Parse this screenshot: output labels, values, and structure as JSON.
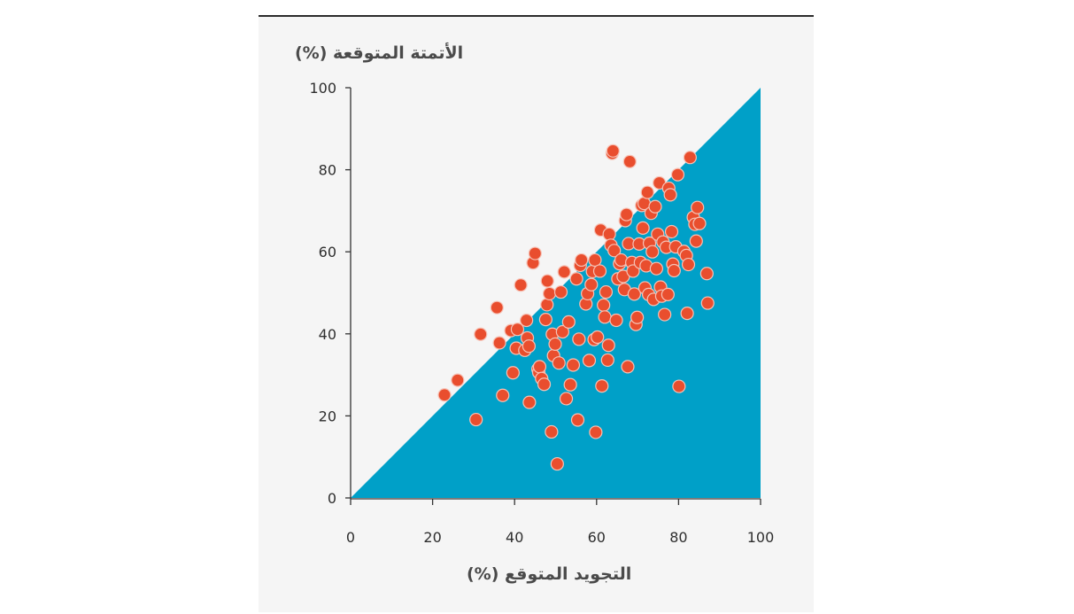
{
  "colors": {
    "region_fill": "#00a0c8",
    "point_fill": "#e94e2e",
    "point_stroke": "#f6c2b6",
    "axis": "#333333",
    "panel_bg": "#f5f5f5"
  },
  "chart_data": {
    "type": "scatter",
    "xlabel": "التجويد المتوقع (%)",
    "ylabel": "الأتمتة المتوقعة (%)",
    "xlim": [
      0,
      100
    ],
    "ylim": [
      0,
      100
    ],
    "xticks": [
      0,
      20,
      40,
      60,
      80,
      100
    ],
    "yticks": [
      0,
      20,
      40,
      60,
      80,
      100
    ],
    "grid": false,
    "region": {
      "description": "shaded area below the diagonal y = x",
      "vertices": [
        [
          0,
          0
        ],
        [
          100,
          100
        ],
        [
          100,
          0
        ]
      ]
    },
    "points": [
      [
        22.9,
        25.1
      ],
      [
        26.1,
        28.7
      ],
      [
        30.6,
        19.1
      ],
      [
        31.7,
        39.9
      ],
      [
        35.7,
        46.4
      ],
      [
        36.3,
        37.8
      ],
      [
        37.1,
        25.0
      ],
      [
        39.1,
        40.8
      ],
      [
        39.6,
        30.5
      ],
      [
        40.4,
        36.5
      ],
      [
        40.7,
        41.1
      ],
      [
        41.5,
        51.9
      ],
      [
        42.5,
        36.0
      ],
      [
        42.9,
        43.3
      ],
      [
        43.1,
        39.0
      ],
      [
        43.5,
        37.0
      ],
      [
        43.6,
        23.3
      ],
      [
        44.5,
        57.3
      ],
      [
        45.0,
        59.6
      ],
      [
        45.7,
        31.4
      ],
      [
        45.9,
        30.6
      ],
      [
        46.1,
        32.0
      ],
      [
        46.6,
        29.1
      ],
      [
        47.2,
        27.7
      ],
      [
        47.6,
        43.5
      ],
      [
        47.9,
        47.1
      ],
      [
        48.0,
        52.9
      ],
      [
        48.5,
        49.8
      ],
      [
        49.0,
        16.1
      ],
      [
        49.2,
        39.9
      ],
      [
        49.5,
        34.7
      ],
      [
        49.9,
        37.5
      ],
      [
        50.4,
        8.3
      ],
      [
        50.8,
        32.9
      ],
      [
        51.3,
        50.2
      ],
      [
        51.7,
        40.5
      ],
      [
        52.1,
        55.1
      ],
      [
        52.6,
        24.2
      ],
      [
        53.2,
        42.9
      ],
      [
        53.6,
        27.6
      ],
      [
        54.3,
        32.4
      ],
      [
        55.1,
        53.4
      ],
      [
        55.4,
        19.0
      ],
      [
        55.7,
        38.7
      ],
      [
        56.0,
        56.7
      ],
      [
        56.3,
        58.0
      ],
      [
        57.4,
        47.3
      ],
      [
        57.8,
        49.8
      ],
      [
        58.2,
        33.5
      ],
      [
        58.7,
        52.0
      ],
      [
        59.0,
        55.2
      ],
      [
        59.4,
        38.6
      ],
      [
        59.6,
        58.0
      ],
      [
        59.8,
        16.0
      ],
      [
        60.2,
        39.2
      ],
      [
        60.8,
        55.3
      ],
      [
        61.0,
        65.3
      ],
      [
        61.3,
        27.3
      ],
      [
        61.7,
        47.0
      ],
      [
        62.0,
        44.1
      ],
      [
        62.3,
        50.2
      ],
      [
        62.7,
        33.6
      ],
      [
        62.9,
        37.2
      ],
      [
        63.1,
        64.3
      ],
      [
        63.5,
        61.6
      ],
      [
        63.8,
        84.0
      ],
      [
        64.0,
        84.6
      ],
      [
        64.3,
        60.3
      ],
      [
        64.8,
        43.3
      ],
      [
        65.2,
        53.4
      ],
      [
        65.6,
        57.1
      ],
      [
        66.0,
        58.0
      ],
      [
        66.5,
        54.0
      ],
      [
        66.8,
        50.8
      ],
      [
        67.0,
        67.6
      ],
      [
        67.3,
        69.1
      ],
      [
        67.6,
        32.0
      ],
      [
        67.8,
        62.0
      ],
      [
        68.1,
        82.0
      ],
      [
        68.6,
        57.4
      ],
      [
        68.9,
        55.3
      ],
      [
        69.2,
        49.7
      ],
      [
        69.6,
        42.3
      ],
      [
        69.9,
        44.0
      ],
      [
        70.4,
        61.9
      ],
      [
        70.7,
        57.4
      ],
      [
        71.0,
        71.3
      ],
      [
        71.3,
        65.8
      ],
      [
        71.6,
        71.8
      ],
      [
        71.8,
        51.2
      ],
      [
        72.1,
        56.6
      ],
      [
        72.4,
        74.5
      ],
      [
        72.7,
        49.6
      ],
      [
        72.9,
        62.1
      ],
      [
        73.3,
        69.4
      ],
      [
        73.6,
        60.0
      ],
      [
        73.9,
        48.4
      ],
      [
        74.3,
        71.0
      ],
      [
        74.6,
        55.9
      ],
      [
        74.9,
        64.3
      ],
      [
        75.3,
        76.8
      ],
      [
        75.6,
        51.4
      ],
      [
        75.9,
        49.2
      ],
      [
        76.2,
        62.4
      ],
      [
        76.6,
        44.7
      ],
      [
        77.0,
        61.1
      ],
      [
        77.4,
        49.6
      ],
      [
        77.6,
        75.5
      ],
      [
        78.0,
        73.9
      ],
      [
        78.3,
        64.9
      ],
      [
        78.6,
        57.0
      ],
      [
        78.9,
        55.4
      ],
      [
        79.3,
        61.2
      ],
      [
        79.8,
        78.8
      ],
      [
        80.1,
        27.2
      ],
      [
        81.3,
        60.1
      ],
      [
        81.9,
        59.1
      ],
      [
        82.1,
        45.0
      ],
      [
        82.4,
        56.9
      ],
      [
        82.8,
        83.0
      ],
      [
        83.6,
        68.4
      ],
      [
        84.0,
        66.7
      ],
      [
        84.3,
        62.6
      ],
      [
        84.6,
        70.8
      ],
      [
        85.1,
        66.9
      ],
      [
        86.9,
        54.7
      ],
      [
        87.1,
        47.5
      ]
    ]
  }
}
